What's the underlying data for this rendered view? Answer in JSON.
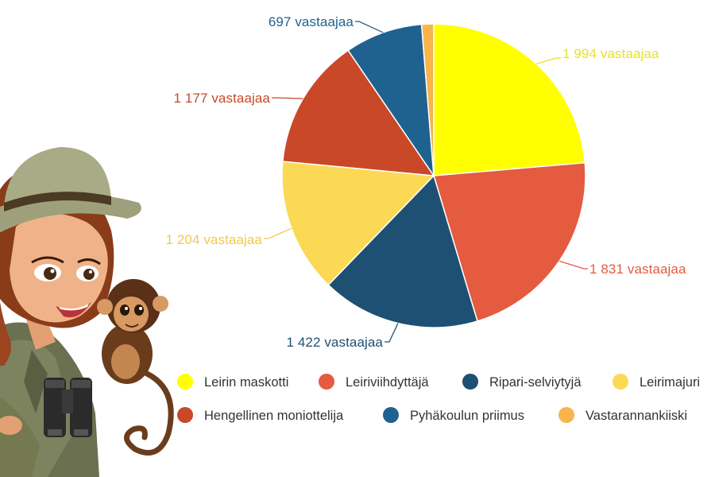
{
  "chart_data": {
    "type": "pie",
    "unit_suffix": " vastaajaa",
    "slices": [
      {
        "name": "Leirin maskotti",
        "value": 1994,
        "label": "1 994 vastaajaa",
        "color": "#ffff00"
      },
      {
        "name": "Leiriviihdyttäjä",
        "value": 1831,
        "label": "1 831 vastaajaa",
        "color": "#e45b40"
      },
      {
        "name": "Ripari-selviytyjä",
        "value": 1422,
        "label": "1 422 vastaajaa",
        "color": "#1d5073"
      },
      {
        "name": "Leirimajuri",
        "value": 1204,
        "label": "1 204 vastaajaa",
        "color": "#fcd955"
      },
      {
        "name": "Hengellinen moniottelija",
        "value": 1177,
        "label": "1 177 vastaajaa",
        "color": "#c94827"
      },
      {
        "name": "Pyhäkoulun priimus",
        "value": 697,
        "label": "697 vastaajaa",
        "color": "#1f6290"
      },
      {
        "name": "Vastarannankiiski",
        "value": 108,
        "label": "",
        "color": "#f9b44c"
      }
    ],
    "legend_position": "bottom"
  },
  "label_colors": {
    "Leirin maskotti": "#e8e12a",
    "Leirimajuri": "#f2c94c"
  },
  "illustration": {
    "description_icon": "explorer-girl-with-monkey"
  }
}
